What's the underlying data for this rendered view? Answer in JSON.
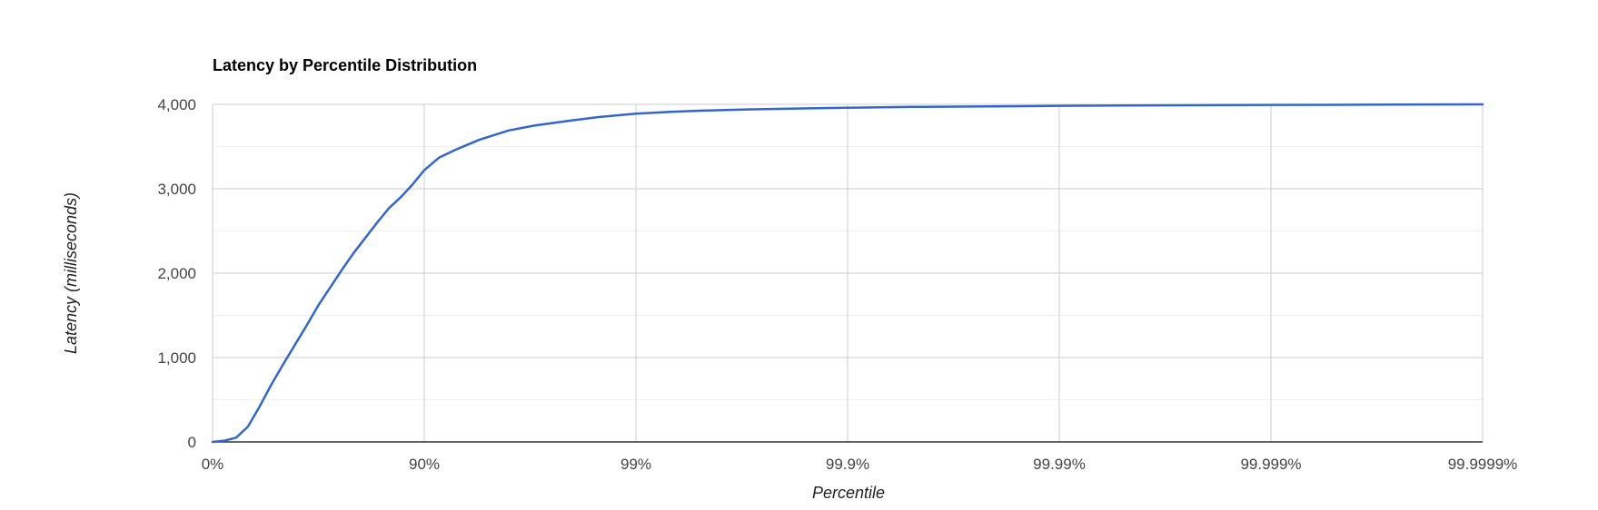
{
  "chart_data": {
    "type": "line",
    "title": "Latency by Percentile Distribution",
    "xlabel": "Percentile",
    "ylabel": "Latency (milliseconds)",
    "x_scale": "log-inverse",
    "x_ticks": [
      {
        "value": 0,
        "label": "0%"
      },
      {
        "value": 90,
        "label": "90%"
      },
      {
        "value": 99,
        "label": "99%"
      },
      {
        "value": 99.9,
        "label": "99.9%"
      },
      {
        "value": 99.99,
        "label": "99.99%"
      },
      {
        "value": 99.999,
        "label": "99.999%"
      },
      {
        "value": 99.9999,
        "label": "99.9999%"
      }
    ],
    "y_ticks": [
      {
        "value": 0,
        "label": "0"
      },
      {
        "value": 1000,
        "label": "1,000"
      },
      {
        "value": 2000,
        "label": "2,000"
      },
      {
        "value": 3000,
        "label": "3,000"
      },
      {
        "value": 4000,
        "label": "4,000"
      }
    ],
    "ylim": [
      0,
      4000
    ],
    "grid": true,
    "legend": "none",
    "line_color": "#3366cc",
    "series": [
      {
        "values": [
          {
            "x": 0,
            "y": 0
          },
          {
            "x": 5,
            "y": 15
          },
          {
            "x": 10,
            "y": 50
          },
          {
            "x": 15,
            "y": 180
          },
          {
            "x": 20,
            "y": 420
          },
          {
            "x": 25,
            "y": 680
          },
          {
            "x": 30,
            "y": 920
          },
          {
            "x": 35,
            "y": 1150
          },
          {
            "x": 40,
            "y": 1380
          },
          {
            "x": 45,
            "y": 1620
          },
          {
            "x": 50,
            "y": 1830
          },
          {
            "x": 55,
            "y": 2040
          },
          {
            "x": 60,
            "y": 2240
          },
          {
            "x": 65,
            "y": 2420
          },
          {
            "x": 70,
            "y": 2600
          },
          {
            "x": 75,
            "y": 2770
          },
          {
            "x": 80,
            "y": 2900
          },
          {
            "x": 85,
            "y": 3050
          },
          {
            "x": 90,
            "y": 3220
          },
          {
            "x": 91.5,
            "y": 3370
          },
          {
            "x": 93,
            "y": 3470
          },
          {
            "x": 94.5,
            "y": 3580
          },
          {
            "x": 96,
            "y": 3690
          },
          {
            "x": 97,
            "y": 3750
          },
          {
            "x": 98,
            "y": 3810
          },
          {
            "x": 98.5,
            "y": 3850
          },
          {
            "x": 99,
            "y": 3890
          },
          {
            "x": 99.3,
            "y": 3910
          },
          {
            "x": 99.5,
            "y": 3925
          },
          {
            "x": 99.7,
            "y": 3940
          },
          {
            "x": 99.8,
            "y": 3948
          },
          {
            "x": 99.9,
            "y": 3960
          },
          {
            "x": 99.95,
            "y": 3970
          },
          {
            "x": 99.99,
            "y": 3982
          },
          {
            "x": 99.995,
            "y": 3987
          },
          {
            "x": 99.999,
            "y": 3993
          },
          {
            "x": 99.9995,
            "y": 3995
          },
          {
            "x": 99.9999,
            "y": 4000
          }
        ]
      }
    ]
  }
}
